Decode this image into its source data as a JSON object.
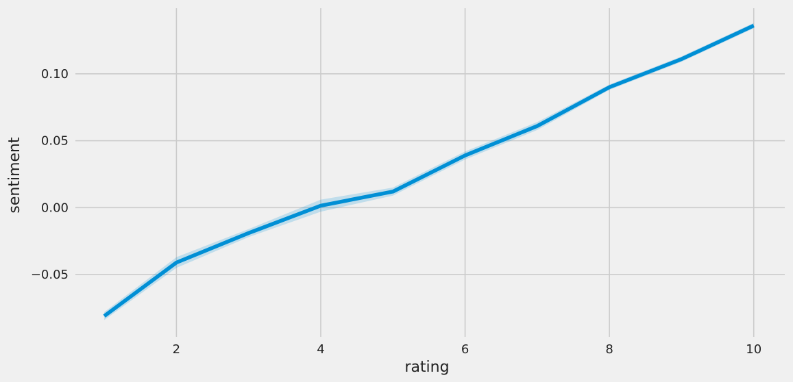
{
  "chart_data": {
    "type": "line",
    "title": "",
    "xlabel": "rating",
    "ylabel": "sentiment",
    "xlim": [
      0.6,
      10.43
    ],
    "ylim": [
      -0.0965,
      0.149
    ],
    "grid": true,
    "x_ticks": [
      {
        "value": 2,
        "label": "2"
      },
      {
        "value": 4,
        "label": "4"
      },
      {
        "value": 6,
        "label": "6"
      },
      {
        "value": 8,
        "label": "8"
      },
      {
        "value": 10,
        "label": "10"
      }
    ],
    "y_ticks": [
      {
        "value": -0.05,
        "label": "−0.05"
      },
      {
        "value": 0.0,
        "label": "0.00"
      },
      {
        "value": 0.05,
        "label": "0.05"
      },
      {
        "value": 0.1,
        "label": "0.10"
      }
    ],
    "series": [
      {
        "color": "#008fd5",
        "band_color": "#008fd5",
        "x": [
          1,
          2,
          3,
          4,
          5,
          6,
          7,
          8,
          9,
          10
        ],
        "y": [
          -0.081,
          -0.041,
          -0.019,
          0.0015,
          0.012,
          0.039,
          0.061,
          0.09,
          0.111,
          0.136
        ],
        "ci_lower": [
          -0.084,
          -0.045,
          -0.022,
          -0.003,
          0.009,
          0.036,
          0.058,
          0.088,
          0.109,
          0.134
        ],
        "ci_upper": [
          -0.078,
          -0.037,
          -0.016,
          0.006,
          0.015,
          0.042,
          0.064,
          0.092,
          0.113,
          0.138
        ]
      }
    ]
  }
}
